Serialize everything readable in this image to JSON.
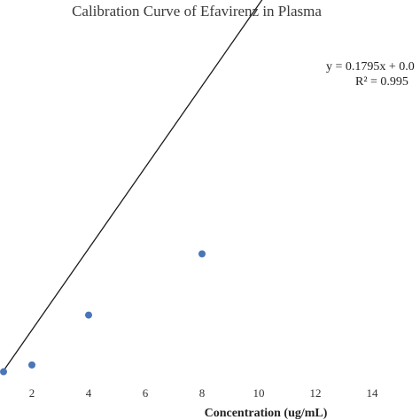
{
  "chart_data": {
    "type": "scatter",
    "title": "Calibration Curve of Efavirenz in Plasma",
    "xlabel": "Concentration (ug/mL)",
    "ylabel": "",
    "xlim": [
      1,
      15
    ],
    "ylim": [
      0.12,
      1.84
    ],
    "x_ticks": [
      "2",
      "4",
      "6",
      "8",
      "10",
      "12",
      "14"
    ],
    "x_tick_values": [
      2,
      4,
      6,
      8,
      10,
      12,
      14
    ],
    "series": [
      {
        "x": [
          1,
          2,
          4,
          8
        ],
        "y": [
          0.2,
          0.23,
          0.45,
          0.72
        ],
        "color": "#4a76b8"
      }
    ],
    "trendline": {
      "slope": 0.1795,
      "intercept": 0.025
    },
    "annotations": {
      "equation": "y = 0.1795x + 0.0",
      "r_squared": "R² = 0.995"
    },
    "grid": false,
    "legend": "none"
  }
}
